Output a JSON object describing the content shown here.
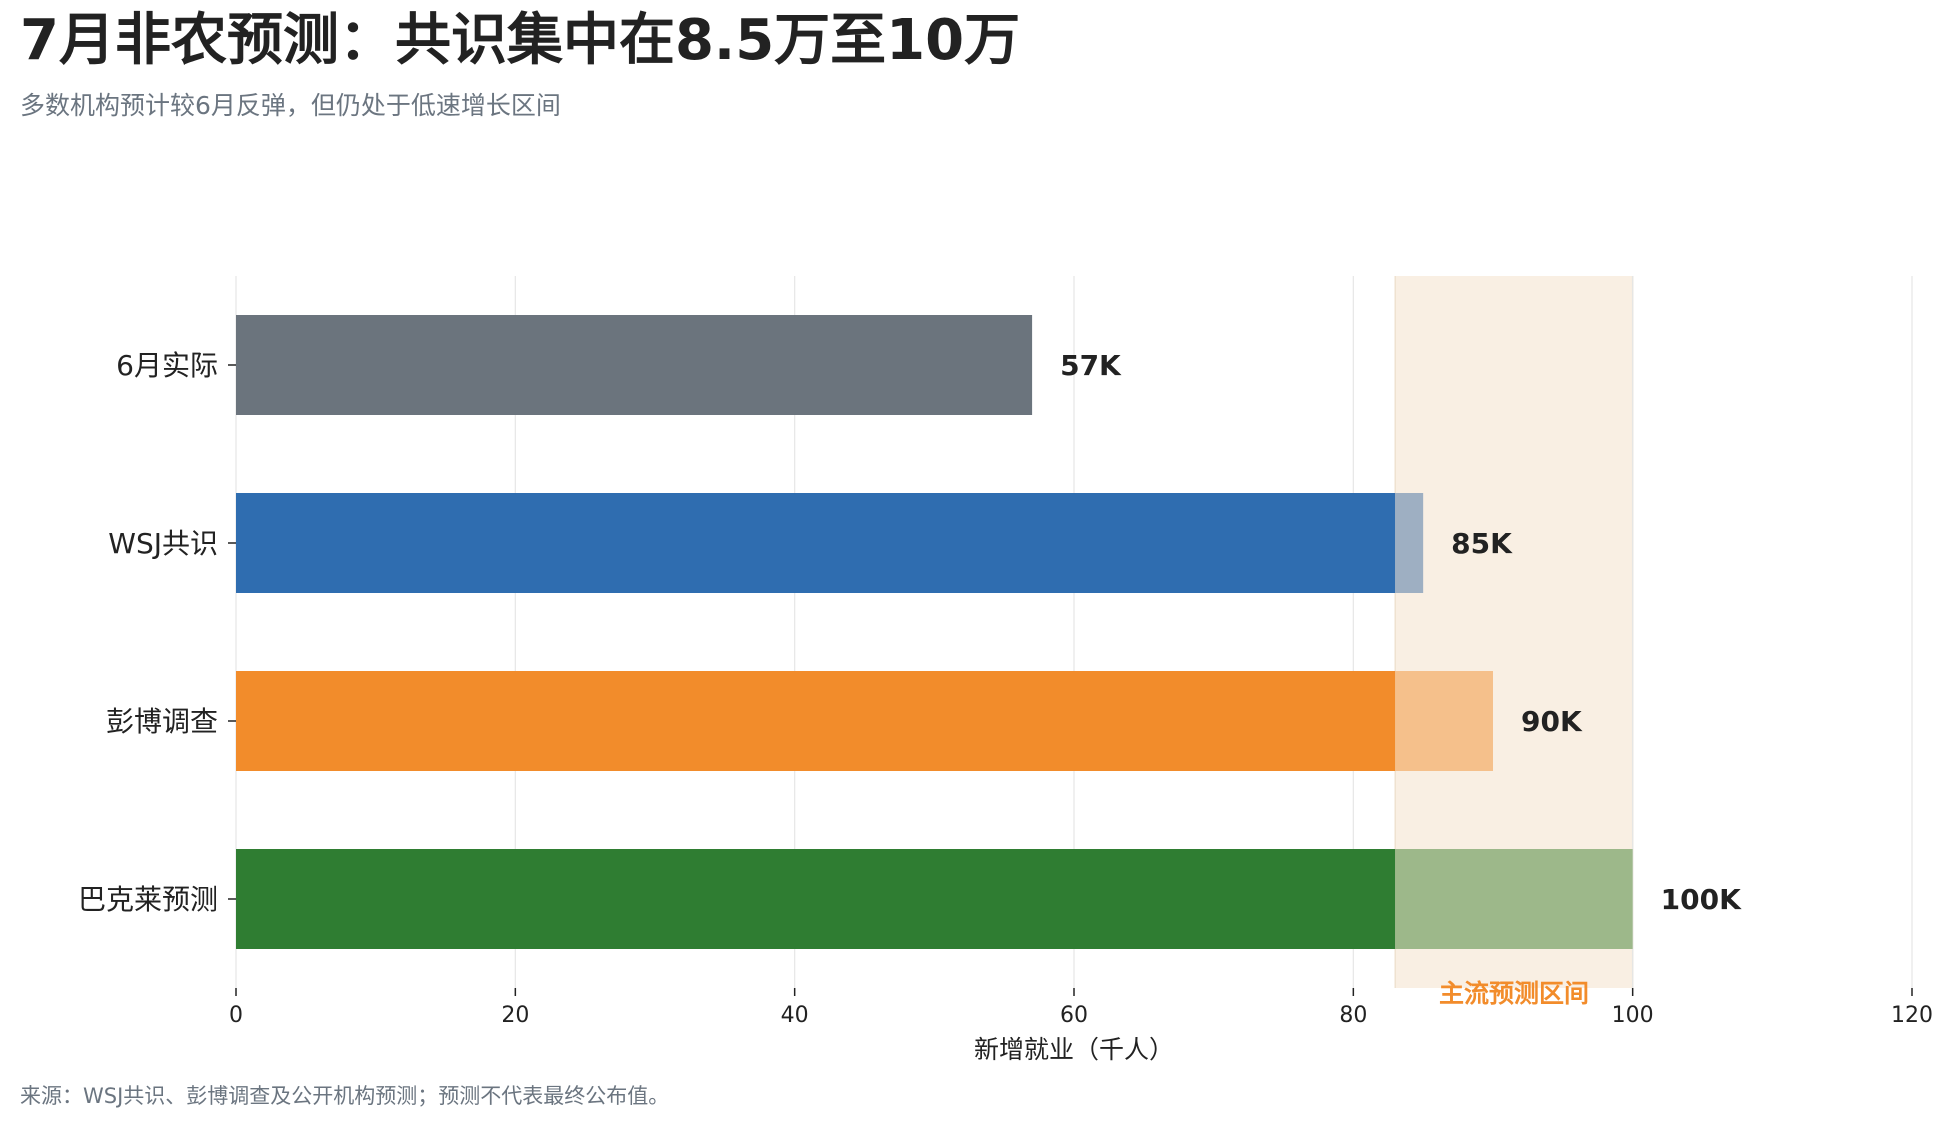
{
  "title": "7月非农预测：共识集中在8.5万至10万",
  "subtitle": "多数机构预计较6月反弹，但仍处于低速增长区间",
  "footer": "来源：WSJ共识、彭博调查及公开机构预测；预测不代表最终公布值。",
  "chart_data": {
    "type": "bar",
    "orientation": "horizontal",
    "categories": [
      "6月实际",
      "WSJ共识",
      "彭博调查",
      "巴克莱预测"
    ],
    "values": [
      57,
      85,
      90,
      100
    ],
    "value_labels": [
      "57K",
      "85K",
      "90K",
      "100K"
    ],
    "colors": [
      "#6b747d",
      "#2f6db0",
      "#f28c2b",
      "#2f7d32"
    ],
    "light_colors": [
      "#6b747d",
      "#9eafc2",
      "#f5c08b",
      "#9db88a"
    ],
    "band": {
      "from": 83,
      "to": 100,
      "label": "主流预测区间",
      "fill": "#f9efe3",
      "label_color": "#f28c2b"
    },
    "xlabel": "新增就业（千人）",
    "xlim": [
      0,
      120
    ],
    "xticks": [
      0,
      20,
      40,
      60,
      80,
      100,
      120
    ],
    "grid": "vertical"
  }
}
